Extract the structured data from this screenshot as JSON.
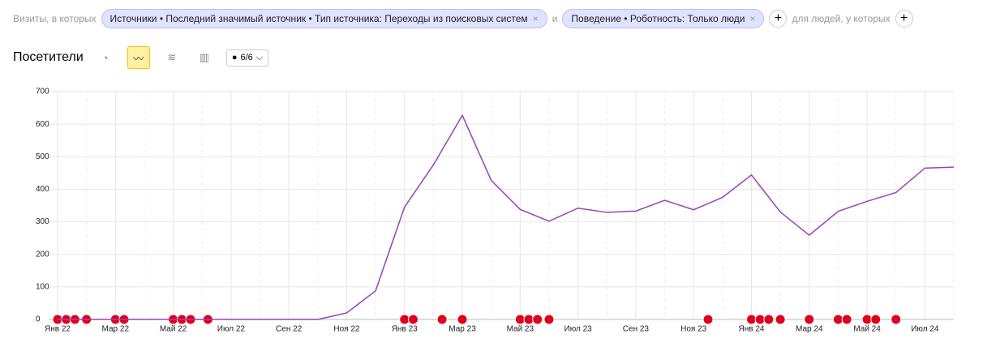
{
  "filters": {
    "prefix": "Визиты, в которых",
    "chips": [
      "Источники • Последний значимый источник • Тип источника: Переходы из поисковых систем",
      "Поведение • Роботность: Только люди"
    ],
    "joiner": "и",
    "people": "для людей, у которых"
  },
  "notes_count": "6/6",
  "chart_data": {
    "type": "line",
    "title": "Посетители",
    "categories": [
      "Янв 22",
      null,
      "Мар 22",
      null,
      "Май 22",
      null,
      "Июл 22",
      null,
      "Сен 22",
      null,
      "Ноя 22",
      null,
      "Янв 23",
      null,
      "Мар 23",
      null,
      "Май 23",
      null,
      "Июл 23",
      null,
      "Сен 23",
      null,
      "Ноя 23",
      null,
      "Янв 24",
      null,
      "Мар 24",
      null,
      "Май 24",
      null,
      "Июл 24",
      null
    ],
    "series": [
      {
        "name": "Посетители",
        "color": "#9c3fb8",
        "values": [
          0,
          0,
          0,
          0,
          0,
          0,
          0,
          0,
          0,
          0,
          20,
          88,
          345,
          475,
          627,
          427,
          338,
          302,
          342,
          329,
          333,
          366,
          337,
          375,
          444,
          330,
          259,
          332,
          363,
          390,
          465,
          468
        ]
      }
    ],
    "ylim": [
      0,
      700
    ],
    "yticks": [
      0,
      100,
      200,
      300,
      400,
      500,
      600,
      700
    ],
    "grid": true
  }
}
